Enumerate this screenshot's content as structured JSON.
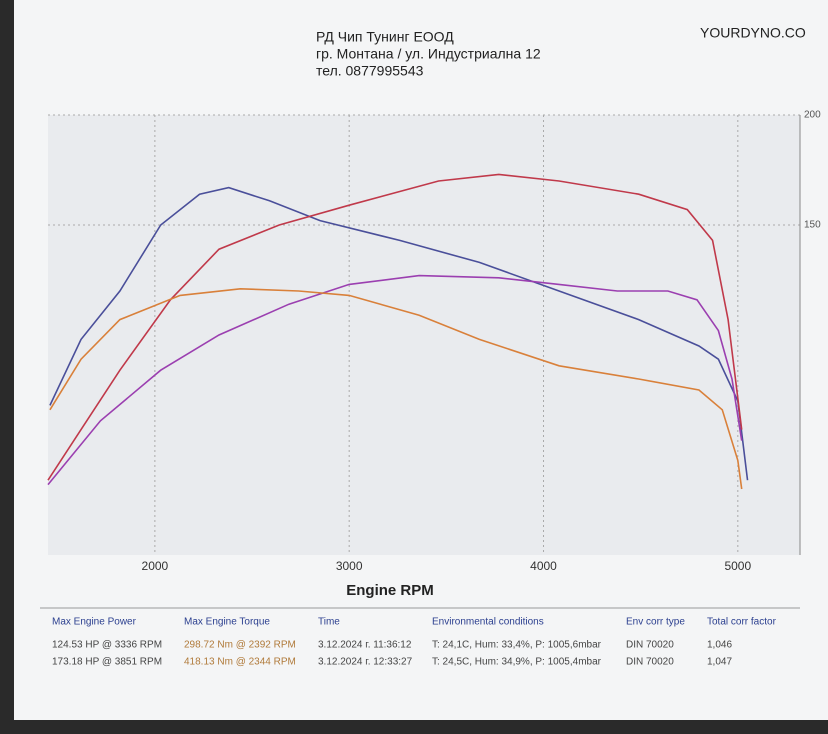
{
  "header": {
    "company": "РД Чип Тунинг ЕООД",
    "address": "гр. Монтана / ул. Индустриална 12",
    "phone": "тел. 0877995543",
    "brand": "YOURDYNO.CO"
  },
  "chart_data": {
    "type": "line",
    "xlabel": "Engine RPM",
    "xlim": [
      1450,
      5320
    ],
    "ylim": [
      0,
      200
    ],
    "xticks": [
      2000,
      3000,
      4000,
      5000
    ],
    "yticks": [
      150,
      200
    ],
    "grid": true,
    "series": [
      {
        "color": "#4a4f9a",
        "x": [
          1460,
          1620,
          1820,
          2030,
          2230,
          2380,
          2590,
          2850,
          3260,
          3670,
          4080,
          4490,
          4800,
          4900,
          5000,
          5050
        ],
        "values": [
          68,
          98,
          120,
          150,
          164,
          167,
          161,
          152,
          143,
          133,
          120,
          107,
          95,
          89,
          70,
          34
        ]
      },
      {
        "color": "#c0394a",
        "x": [
          1450,
          1620,
          1820,
          2080,
          2330,
          2640,
          3000,
          3460,
          3770,
          4080,
          4490,
          4740,
          4870,
          4950,
          5020
        ],
        "values": [
          34,
          57,
          84,
          116,
          139,
          150,
          159,
          170,
          173,
          170,
          164,
          157,
          143,
          107,
          57
        ]
      },
      {
        "color": "#9b3fb0",
        "x": [
          1450,
          1720,
          2030,
          2330,
          2690,
          3000,
          3360,
          3770,
          4080,
          4380,
          4640,
          4790,
          4900,
          4970,
          5020
        ],
        "values": [
          32,
          61,
          84,
          100,
          114,
          123,
          127,
          126,
          123,
          120,
          120,
          116,
          102,
          80,
          52
        ]
      },
      {
        "color": "#d9803a",
        "x": [
          1460,
          1620,
          1820,
          2130,
          2440,
          2740,
          3000,
          3360,
          3670,
          4080,
          4490,
          4800,
          4920,
          5000,
          5020
        ],
        "values": [
          66,
          89,
          107,
          118,
          121,
          120,
          118,
          109,
          98,
          86,
          80,
          75,
          66,
          43,
          30
        ]
      }
    ]
  },
  "table": {
    "headers": [
      "Max Engine Power",
      "Max Engine Torque",
      "Time",
      "Environmental conditions",
      "Env corr type",
      "Total corr factor"
    ],
    "rows": [
      [
        "124.53 HP @ 3336 RPM",
        "298.72 Nm @ 2392 RPM",
        "3.12.2024 г. 11:36:12",
        "T: 24,1C, Hum: 33,4%, P: 1005,6mbar",
        "DIN 70020",
        "1,046"
      ],
      [
        "173.18 HP @ 3851 RPM",
        "418.13 Nm @ 2344 RPM",
        "3.12.2024 г. 12:33:27",
        "T: 24,5C, Hum: 34,9%, P: 1005,4mbar",
        "DIN 70020",
        "1,047"
      ]
    ]
  }
}
